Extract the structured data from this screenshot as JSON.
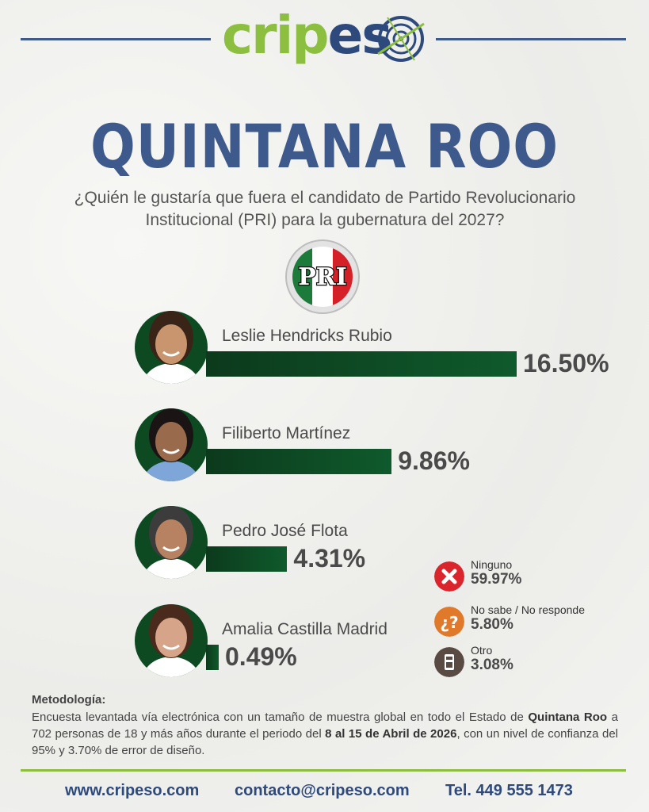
{
  "brand": {
    "logo_left": "crip",
    "logo_mid": "es",
    "logo_right": "o"
  },
  "title": "QUINTANA ROO",
  "question": "¿Quién le gustaría que fuera el candidato de Partido Revolucionario Institucional (PRI) para la gubernatura del 2027?",
  "party_logo_text": "PRI",
  "chart_data": {
    "type": "bar",
    "categories": [
      "Leslie Hendricks Rubio",
      "Filiberto Martínez",
      "Pedro José Flota",
      "Amalia Castilla Madrid"
    ],
    "values": [
      16.5,
      9.86,
      4.31,
      0.49
    ],
    "value_labels": [
      "16.50%",
      "9.86%",
      "4.31%",
      "0.49%"
    ],
    "others": [
      {
        "label": "Ninguno",
        "value": 59.97,
        "value_label": "59.97%",
        "icon": "x-icon",
        "color": "#d9252b"
      },
      {
        "label": "No sabe / No responde",
        "value": 5.8,
        "value_label": "5.80%",
        "icon": "question-icon",
        "color": "#e07a2a"
      },
      {
        "label": "Otro",
        "value": 3.08,
        "value_label": "3.08%",
        "icon": "ballot-icon",
        "color": "#5a4a44"
      }
    ]
  },
  "colors": {
    "title": "#3e5a8c",
    "bar": "#0c3a1c",
    "accent_green": "#8cbf3f"
  },
  "methodology": {
    "heading": "Metodología:",
    "p1": "Encuesta levantada vía electrónica con un tamaño de muestra global en todo el Estado de ",
    "b1": "Quintana Roo",
    "p2": " a 702 personas de 18 y más años durante el periodo del ",
    "b2": "8 al 15 de Abril de 2026",
    "p3": ", con un nivel de confianza del 95% y 3.70% de error de diseño."
  },
  "footer": {
    "web": "www.cripeso.com",
    "email": "contacto@cripeso.com",
    "phone": "Tel. 449 555 1473"
  }
}
